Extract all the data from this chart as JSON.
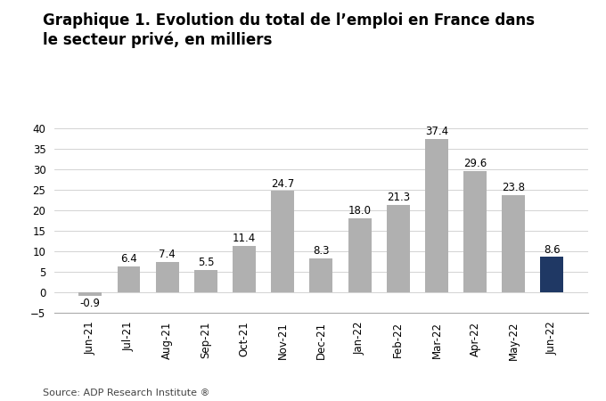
{
  "title_line1": "Graphique 1. Evolution du total de l’emploi en France dans",
  "title_line2": "le secteur privé, en milliers",
  "categories": [
    "Jun-21",
    "Jul-21",
    "Aug-21",
    "Sep-21",
    "Oct-21",
    "Nov-21",
    "Dec-21",
    "Jan-22",
    "Feb-22",
    "Mar-22",
    "Apr-22",
    "May-22",
    "Jun-22"
  ],
  "values": [
    -0.9,
    6.4,
    7.4,
    5.5,
    11.4,
    24.7,
    8.3,
    18.0,
    21.3,
    37.4,
    29.6,
    23.8,
    8.6
  ],
  "bar_colors": [
    "#b0b0b0",
    "#b0b0b0",
    "#b0b0b0",
    "#b0b0b0",
    "#b0b0b0",
    "#b0b0b0",
    "#b0b0b0",
    "#b0b0b0",
    "#b0b0b0",
    "#b0b0b0",
    "#b0b0b0",
    "#b0b0b0",
    "#1f3864"
  ],
  "ylim": [
    -5,
    40
  ],
  "yticks": [
    -5,
    0,
    5,
    10,
    15,
    20,
    25,
    30,
    35,
    40
  ],
  "source_text": "Source: ADP Research Institute ®",
  "background_color": "#ffffff",
  "title_fontsize": 12,
  "label_fontsize": 8.5,
  "tick_fontsize": 8.5,
  "source_fontsize": 8
}
